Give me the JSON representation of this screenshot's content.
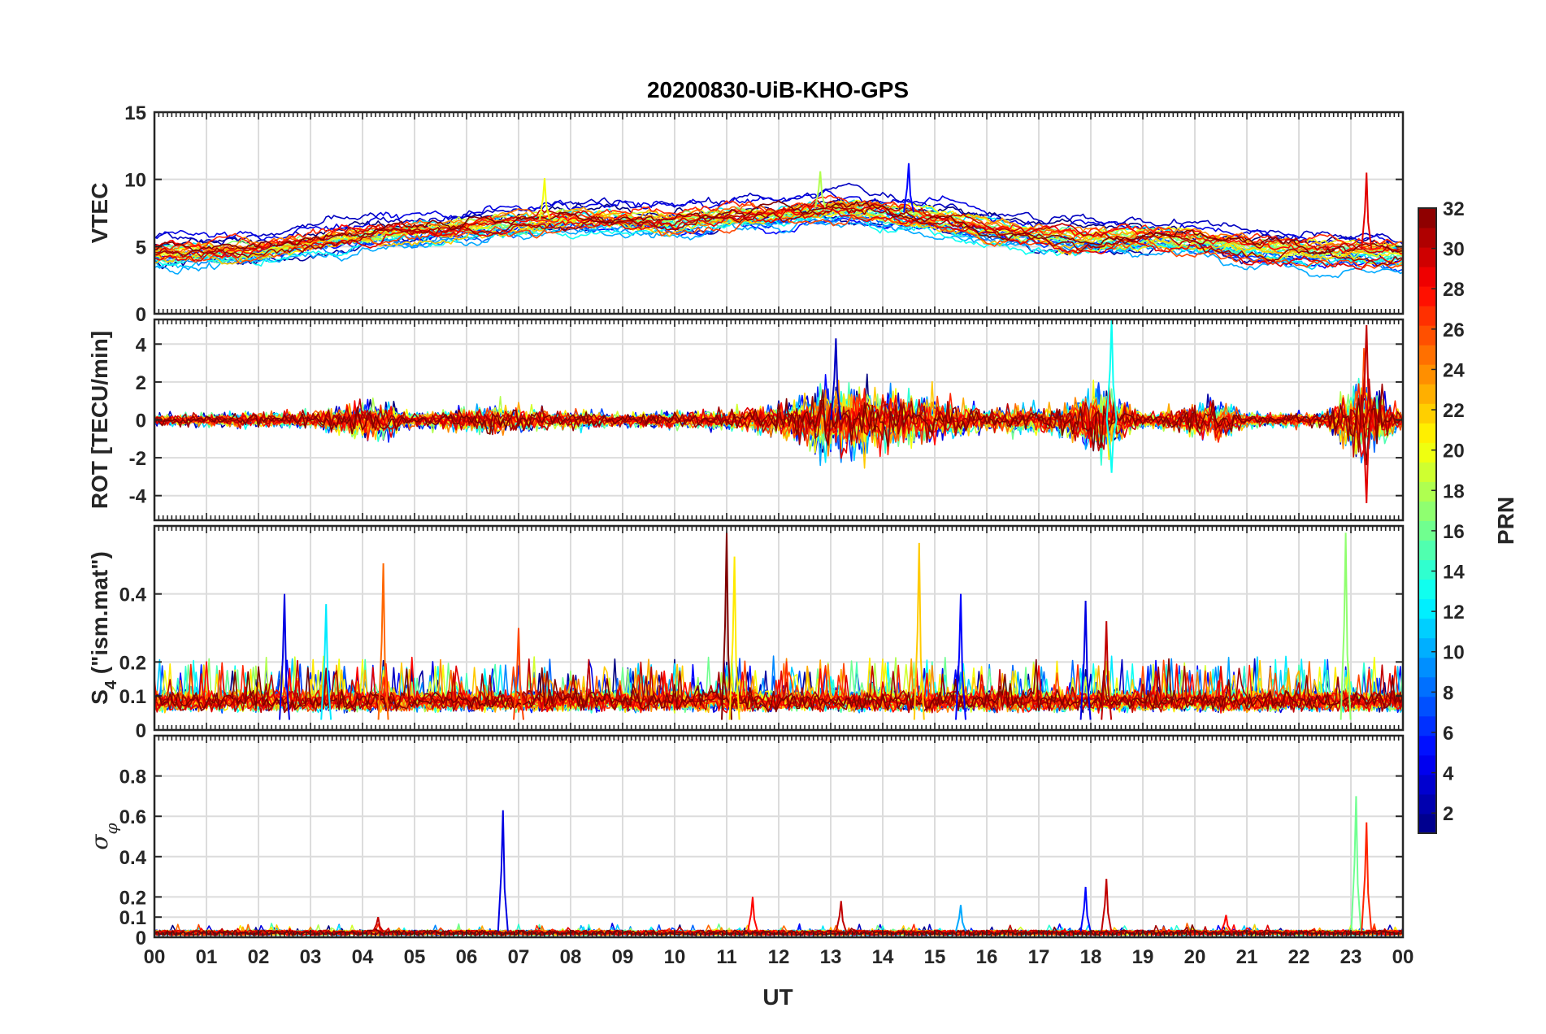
{
  "chart_data": {
    "type": "line",
    "title": "20200830-UiB-KHO-GPS",
    "xlabel": "UT",
    "x_tick_labels": [
      "00",
      "01",
      "02",
      "03",
      "04",
      "05",
      "06",
      "07",
      "08",
      "09",
      "10",
      "11",
      "12",
      "13",
      "14",
      "15",
      "16",
      "17",
      "18",
      "19",
      "20",
      "21",
      "22",
      "23",
      "00"
    ],
    "x_range_hours": [
      0,
      24
    ],
    "panels": [
      {
        "id": "vtec",
        "ylabel": "VTEC",
        "ylim": [
          0,
          15
        ],
        "y_ticks": [
          0,
          5,
          10,
          15
        ],
        "y_tick_labels": [
          "0",
          "5",
          "10",
          "15"
        ],
        "trend_knots": [
          [
            0,
            4.6
          ],
          [
            2,
            4.8
          ],
          [
            4,
            6.0
          ],
          [
            6,
            6.6
          ],
          [
            8,
            7.2
          ],
          [
            10,
            7.0
          ],
          [
            11,
            7.4
          ],
          [
            12,
            7.6
          ],
          [
            13,
            8.0
          ],
          [
            14,
            7.8
          ],
          [
            15,
            7.3
          ],
          [
            16,
            6.6
          ],
          [
            17,
            6.0
          ],
          [
            18,
            5.8
          ],
          [
            19,
            5.9
          ],
          [
            20,
            5.7
          ],
          [
            21,
            5.2
          ],
          [
            22,
            5.0
          ],
          [
            23,
            4.9
          ],
          [
            24,
            4.7
          ]
        ],
        "spikes": [
          {
            "hour": 23.3,
            "value": 10.5,
            "prn": 29
          },
          {
            "hour": 14.5,
            "value": 11.2,
            "prn": 5
          },
          {
            "hour": 12.8,
            "value": 10.6,
            "prn": 18
          },
          {
            "hour": 7.5,
            "value": 10.1,
            "prn": 20
          }
        ]
      },
      {
        "id": "rot",
        "ylabel": "ROT [TECU/min]",
        "ylim": [
          -5.3,
          5.3
        ],
        "y_ticks": [
          -4,
          -2,
          0,
          2,
          4
        ],
        "y_tick_labels": [
          "-4",
          "-2",
          "0",
          "2",
          "4"
        ],
        "activity_knots": [
          [
            0,
            0.35
          ],
          [
            3,
            0.5
          ],
          [
            4.2,
            1.3
          ],
          [
            5,
            0.4
          ],
          [
            6.5,
            0.9
          ],
          [
            9,
            0.4
          ],
          [
            11,
            0.6
          ],
          [
            12,
            1.0
          ],
          [
            13,
            2.2
          ],
          [
            14,
            1.8
          ],
          [
            15,
            1.4
          ],
          [
            16,
            0.8
          ],
          [
            17.5,
            0.9
          ],
          [
            18.2,
            2.2
          ],
          [
            19,
            0.4
          ],
          [
            20.5,
            1.3
          ],
          [
            21,
            0.4
          ],
          [
            22.5,
            0.4
          ],
          [
            23.2,
            2.8
          ],
          [
            24,
            0.5
          ]
        ],
        "spikes": [
          {
            "hour": 18.4,
            "value": 5.3,
            "prn": 13
          },
          {
            "hour": 23.3,
            "value": 5.0,
            "prn": 30
          },
          {
            "hour": 13.1,
            "value": 4.3,
            "prn": 3
          },
          {
            "hour": 23.3,
            "value": -4.4,
            "prn": 29
          },
          {
            "hour": 18.4,
            "value": -2.8,
            "prn": 13
          }
        ]
      },
      {
        "id": "s4",
        "ylabel": "S4 (\"ism.mat\")",
        "ylabel_main": "S",
        "ylabel_sub": "4",
        "ylabel_rest": " (\"ism.mat\")",
        "ylim": [
          0,
          0.6
        ],
        "y_ticks": [
          0,
          0.1,
          0.2,
          0.4
        ],
        "y_tick_labels": [
          "0",
          "0.1",
          "0.2",
          "0.4"
        ],
        "spikes": [
          {
            "hour": 11.0,
            "value": 0.58,
            "prn": 32
          },
          {
            "hour": 11.15,
            "value": 0.51,
            "prn": 21
          },
          {
            "hour": 14.7,
            "value": 0.55,
            "prn": 22
          },
          {
            "hour": 22.9,
            "value": 0.58,
            "prn": 17
          },
          {
            "hour": 4.4,
            "value": 0.49,
            "prn": 25
          },
          {
            "hour": 2.5,
            "value": 0.4,
            "prn": 4
          },
          {
            "hour": 3.3,
            "value": 0.37,
            "prn": 12
          },
          {
            "hour": 15.5,
            "value": 0.4,
            "prn": 5
          },
          {
            "hour": 17.9,
            "value": 0.38,
            "prn": 4
          },
          {
            "hour": 18.3,
            "value": 0.32,
            "prn": 30
          },
          {
            "hour": 7.0,
            "value": 0.3,
            "prn": 26
          }
        ]
      },
      {
        "id": "sigma_phi",
        "ylabel": "σφ",
        "ylabel_main": "σ",
        "ylabel_sub": "φ",
        "ylim": [
          0,
          1.0
        ],
        "y_ticks": [
          0,
          0.1,
          0.2,
          0.4,
          0.6,
          0.8
        ],
        "y_tick_labels": [
          "0",
          "0.1",
          "0.2",
          "0.4",
          "0.6",
          "0.8"
        ],
        "spikes": [
          {
            "hour": 6.7,
            "value": 0.63,
            "prn": 4
          },
          {
            "hour": 23.1,
            "value": 0.7,
            "prn": 16
          },
          {
            "hour": 23.3,
            "value": 0.57,
            "prn": 27
          },
          {
            "hour": 18.3,
            "value": 0.29,
            "prn": 30
          },
          {
            "hour": 17.9,
            "value": 0.25,
            "prn": 5
          },
          {
            "hour": 11.5,
            "value": 0.2,
            "prn": 28
          },
          {
            "hour": 13.2,
            "value": 0.18,
            "prn": 30
          },
          {
            "hour": 15.5,
            "value": 0.16,
            "prn": 10
          },
          {
            "hour": 4.3,
            "value": 0.1,
            "prn": 30
          },
          {
            "hour": 20.6,
            "value": 0.11,
            "prn": 28
          }
        ]
      }
    ],
    "colorbar": {
      "label": "PRN",
      "range": [
        1,
        32
      ],
      "ticks": [
        2,
        4,
        6,
        8,
        10,
        12,
        14,
        16,
        18,
        20,
        22,
        24,
        26,
        28,
        30,
        32
      ],
      "tick_labels": [
        "2",
        "4",
        "6",
        "8",
        "10",
        "12",
        "14",
        "16",
        "18",
        "20",
        "22",
        "24",
        "26",
        "28",
        "30",
        "32"
      ],
      "colormap": "jet",
      "levels": 32
    },
    "series": {
      "prns": [
        1,
        2,
        3,
        4,
        5,
        6,
        7,
        8,
        9,
        10,
        11,
        12,
        13,
        14,
        15,
        16,
        17,
        18,
        19,
        20,
        21,
        22,
        23,
        24,
        25,
        26,
        27,
        28,
        29,
        30,
        31,
        32
      ],
      "sample_step_hours": 0.05
    },
    "grid": true
  }
}
